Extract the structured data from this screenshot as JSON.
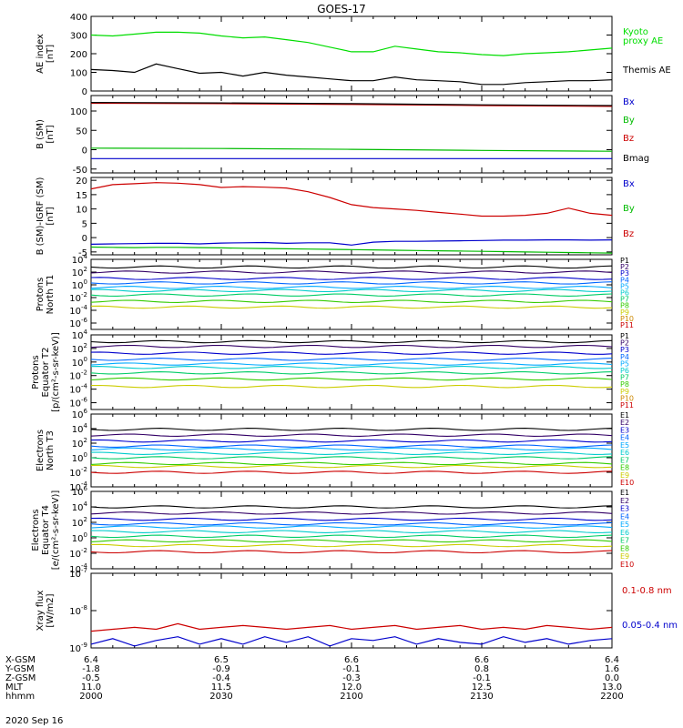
{
  "title": "GOES-17",
  "date": "2020 Sep 16",
  "chart_data": [
    {
      "type": "line",
      "ylabel": [
        "AE index",
        "[nT]"
      ],
      "ylim": [
        0,
        400
      ],
      "yticks": [
        "0",
        "100",
        "200",
        "300",
        "400"
      ],
      "x": [
        0,
        5,
        10,
        15,
        20,
        25,
        30,
        35,
        40,
        45,
        50,
        55,
        60,
        65,
        70,
        75,
        80,
        85,
        90,
        95,
        100,
        105,
        110,
        115,
        120
      ],
      "series": [
        {
          "name": "Kyoto proxy AE",
          "legend": [
            "Kyoto",
            "proxy AE"
          ],
          "color": "#00dd00",
          "values": [
            300,
            295,
            305,
            315,
            315,
            310,
            295,
            285,
            290,
            275,
            260,
            235,
            210,
            210,
            240,
            225,
            210,
            205,
            195,
            190,
            200,
            205,
            210,
            220,
            230
          ]
        },
        {
          "name": "Themis AE",
          "legend": [
            "Themis AE"
          ],
          "color": "#000000",
          "values": [
            115,
            110,
            100,
            145,
            120,
            95,
            100,
            80,
            100,
            85,
            75,
            65,
            55,
            55,
            75,
            60,
            55,
            50,
            35,
            35,
            45,
            50,
            55,
            55,
            60
          ]
        }
      ]
    },
    {
      "type": "line",
      "ylabel": [
        "B (SM)",
        "[nT]"
      ],
      "ylim": [
        -60,
        140
      ],
      "yticks": [
        "-50",
        "0",
        "50",
        "100"
      ],
      "x": [
        0,
        30,
        60,
        90,
        120
      ],
      "series": [
        {
          "name": "Bx",
          "color": "#0000cc",
          "values": [
            -23,
            -23,
            -23,
            -23,
            -23
          ]
        },
        {
          "name": "By",
          "color": "#00bb00",
          "values": [
            4,
            3,
            1,
            -2,
            -4
          ]
        },
        {
          "name": "Bz",
          "color": "#cc0000",
          "values": [
            120,
            119,
            117,
            114,
            112
          ]
        },
        {
          "name": "Bmag",
          "color": "#000000",
          "values": [
            122,
            121,
            119,
            116,
            114
          ]
        }
      ]
    },
    {
      "type": "line",
      "ylabel": [
        "B (SM)-IGRF (SM)",
        "[nT]"
      ],
      "ylim": [
        -6,
        21
      ],
      "yticks": [
        "-5",
        "0",
        "5",
        "10",
        "15",
        "20"
      ],
      "x": [
        0,
        5,
        10,
        15,
        20,
        25,
        30,
        35,
        40,
        45,
        50,
        55,
        60,
        65,
        70,
        75,
        80,
        85,
        90,
        95,
        100,
        105,
        110,
        115,
        120
      ],
      "series": [
        {
          "name": "Bx",
          "color": "#0000cc",
          "values": [
            -2.3,
            -2.2,
            -2.1,
            -2.0,
            -2.0,
            -2.2,
            -1.9,
            -1.8,
            -1.7,
            -2.0,
            -1.8,
            -1.8,
            -2.6,
            -1.6,
            -1.3,
            -1.3,
            -1.2,
            -1.1,
            -1.0,
            -0.9,
            -0.9,
            -0.8,
            -0.8,
            -0.9,
            -0.8
          ]
        },
        {
          "name": "By",
          "color": "#00bb00",
          "values": [
            -3.3,
            -3.4,
            -3.5,
            -3.4,
            -3.4,
            -3.5,
            -3.6,
            -3.7,
            -3.8,
            -3.9,
            -4.0,
            -4.1,
            -4.2,
            -4.3,
            -4.4,
            -4.5,
            -4.6,
            -4.7,
            -4.8,
            -4.9,
            -5.0,
            -5.1,
            -5.2,
            -5.3,
            -5.4
          ]
        },
        {
          "name": "Bz",
          "color": "#cc0000",
          "values": [
            17.0,
            18.5,
            18.8,
            19.2,
            19.0,
            18.5,
            17.5,
            17.8,
            17.6,
            17.3,
            16.0,
            14.0,
            11.5,
            10.5,
            10.0,
            9.5,
            8.8,
            8.2,
            7.5,
            7.5,
            7.8,
            8.5,
            10.3,
            8.5,
            7.8
          ]
        }
      ]
    },
    {
      "type": "line",
      "ylabel": [
        "Protons",
        "North T1"
      ],
      "log": true,
      "ylim": [
        -7,
        4
      ],
      "yticks": [
        "10^4",
        "10^2",
        "10^0",
        "10^-2",
        "10^-4",
        "10^-6"
      ],
      "series_names": [
        "P1",
        "P2",
        "P3",
        "P4",
        "P5",
        "P6",
        "P7",
        "P8",
        "P9",
        "P10",
        "P11"
      ],
      "series_colors": [
        "#000000",
        "#330066",
        "#0000cc",
        "#0066ff",
        "#00aaff",
        "#00cccc",
        "#00cc66",
        "#33cc00",
        "#cccc00",
        "#cc8800",
        "#cc0000"
      ],
      "levels": [
        2.8,
        2.0,
        1.0,
        0.3,
        -0.4,
        -0.9,
        -1.6,
        -2.6,
        -3.5,
        null,
        null
      ]
    },
    {
      "type": "line",
      "ylabel": [
        "Protons",
        "Equator T2",
        "[p/(cm²-s-sr-keV)]"
      ],
      "log": true,
      "ylim": [
        -7,
        4
      ],
      "yticks": [
        "10^4",
        "10^2",
        "10^0",
        "10^-2",
        "10^-4",
        "10^-6"
      ],
      "series_names": [
        "P1",
        "P2",
        "P3",
        "P4",
        "P5",
        "P6",
        "P7",
        "P8",
        "P9",
        "P10",
        "P11"
      ],
      "series_colors": [
        "#000000",
        "#330066",
        "#0000cc",
        "#0066ff",
        "#00aaff",
        "#00cccc",
        "#00cc66",
        "#33cc00",
        "#cccc00",
        "#cc8800",
        "#cc0000"
      ],
      "levels": [
        3.0,
        2.3,
        1.3,
        0.4,
        -0.3,
        -0.8,
        -1.6,
        -2.5,
        -3.6,
        null,
        null
      ]
    },
    {
      "type": "line",
      "ylabel": [
        "Electrons",
        "North T3"
      ],
      "log": true,
      "ylim": [
        -4,
        6
      ],
      "yticks": [
        "10^6",
        "10^4",
        "10^2",
        "10^0",
        "10^-2",
        "10^-4"
      ],
      "series_names": [
        "E1",
        "E2",
        "E3",
        "E4",
        "E5",
        "E6",
        "E7",
        "E8",
        "E9",
        "E10"
      ],
      "series_colors": [
        "#000000",
        "#330066",
        "#0000cc",
        "#0066ff",
        "#00aaff",
        "#00cccc",
        "#00cc66",
        "#33cc00",
        "#cccc00",
        "#cc0000"
      ],
      "levels": [
        3.9,
        3.1,
        2.3,
        1.6,
        1.2,
        0.6,
        0.0,
        -0.8,
        -1.2,
        -2.0
      ]
    },
    {
      "type": "line",
      "ylabel": [
        "Electrons",
        "Equator T4",
        "[e/(cm²-s-sr-keV)]"
      ],
      "log": true,
      "ylim": [
        -4,
        6
      ],
      "yticks": [
        "10^6",
        "10^4",
        "10^2",
        "10^0",
        "10^-2",
        "10^-4"
      ],
      "series_names": [
        "E1",
        "E2",
        "E3",
        "E4",
        "E5",
        "E6",
        "E7",
        "E8",
        "E9",
        "E10"
      ],
      "series_colors": [
        "#000000",
        "#330066",
        "#0000cc",
        "#0066ff",
        "#00aaff",
        "#00cccc",
        "#00cc66",
        "#33cc00",
        "#cccc00",
        "#cc0000"
      ],
      "levels": [
        4.0,
        3.2,
        2.4,
        1.8,
        1.4,
        0.8,
        0.2,
        -0.4,
        -1.0,
        -1.8
      ]
    },
    {
      "type": "line",
      "ylabel": [
        "Xray flux",
        "[W/m2]"
      ],
      "log": true,
      "ylim": [
        -9,
        -7
      ],
      "yticks": [
        "10^-7",
        "10^-8",
        "10^-9"
      ],
      "x": [
        0,
        5,
        10,
        15,
        20,
        25,
        30,
        35,
        40,
        45,
        50,
        55,
        60,
        65,
        70,
        75,
        80,
        85,
        90,
        95,
        100,
        105,
        110,
        115,
        120
      ],
      "series": [
        {
          "name": "0.1-0.8 nm",
          "color": "#cc0000",
          "values": [
            -8.55,
            -8.5,
            -8.45,
            -8.5,
            -8.35,
            -8.5,
            -8.45,
            -8.4,
            -8.45,
            -8.5,
            -8.45,
            -8.4,
            -8.5,
            -8.45,
            -8.4,
            -8.5,
            -8.45,
            -8.4,
            -8.5,
            -8.45,
            -8.5,
            -8.4,
            -8.45,
            -8.5,
            -8.45
          ]
        },
        {
          "name": "0.05-0.4 nm",
          "color": "#0000cc",
          "values": [
            -8.9,
            -8.75,
            -8.95,
            -8.8,
            -8.7,
            -8.9,
            -8.75,
            -8.9,
            -8.7,
            -8.85,
            -8.7,
            -8.95,
            -8.75,
            -8.8,
            -8.7,
            -8.9,
            -8.75,
            -8.85,
            -8.9,
            -8.7,
            -8.85,
            -8.75,
            -8.9,
            -8.8,
            -8.75
          ]
        }
      ]
    }
  ],
  "footer": {
    "rows": [
      {
        "label": "X-GSM",
        "values": [
          "6.4",
          "6.5",
          "6.6",
          "6.6",
          "6.4"
        ]
      },
      {
        "label": "Y-GSM",
        "values": [
          "-1.8",
          "-0.9",
          "-0.1",
          "0.8",
          "1.6"
        ]
      },
      {
        "label": "Z-GSM",
        "values": [
          "-0.5",
          "-0.4",
          "-0.3",
          "-0.1",
          "0.0"
        ]
      },
      {
        "label": "MLT",
        "values": [
          "11.0",
          "11.5",
          "12.0",
          "12.5",
          "13.0"
        ]
      },
      {
        "label": "hhmm",
        "values": [
          "2000",
          "2030",
          "2100",
          "2130",
          "2200"
        ]
      }
    ]
  }
}
